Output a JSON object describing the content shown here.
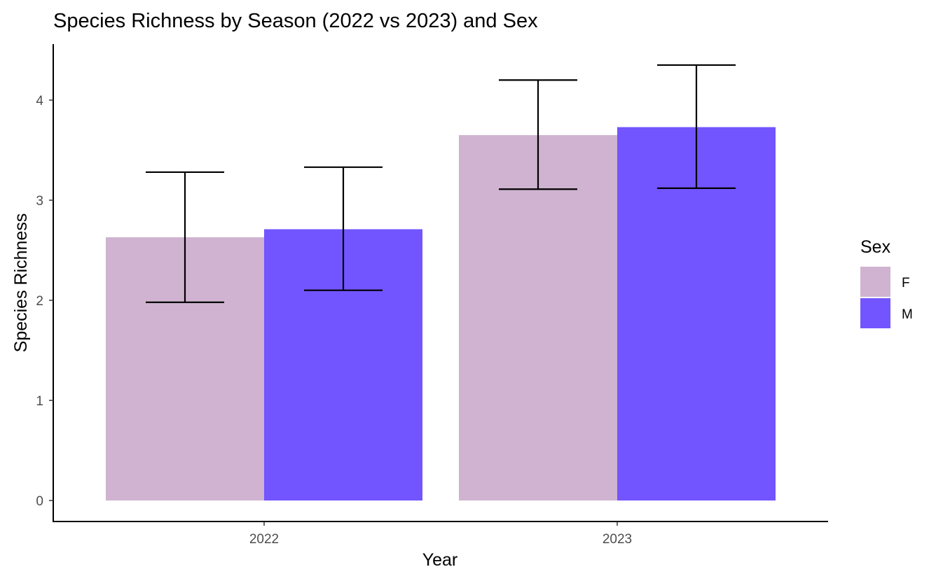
{
  "chart_data": {
    "type": "bar",
    "title": "Species Richness by Season (2022 vs 2023) and Sex",
    "xlabel": "Year",
    "ylabel": "Species Richness",
    "categories": [
      "2022",
      "2023"
    ],
    "ylim": [
      0,
      4.5
    ],
    "yticks": [
      "0",
      "1",
      "2",
      "3",
      "4"
    ],
    "grid": false,
    "legend": {
      "title": "Sex",
      "position": "right"
    },
    "series": [
      {
        "name": "F",
        "color": "#cfb3d0",
        "values": [
          2.63,
          3.65
        ],
        "error_low": [
          1.98,
          3.11
        ],
        "error_high": [
          3.28,
          4.2
        ]
      },
      {
        "name": "M",
        "color": "#7255ff",
        "values": [
          2.71,
          3.73
        ],
        "error_low": [
          2.1,
          3.12
        ],
        "error_high": [
          3.33,
          4.35
        ]
      }
    ]
  }
}
